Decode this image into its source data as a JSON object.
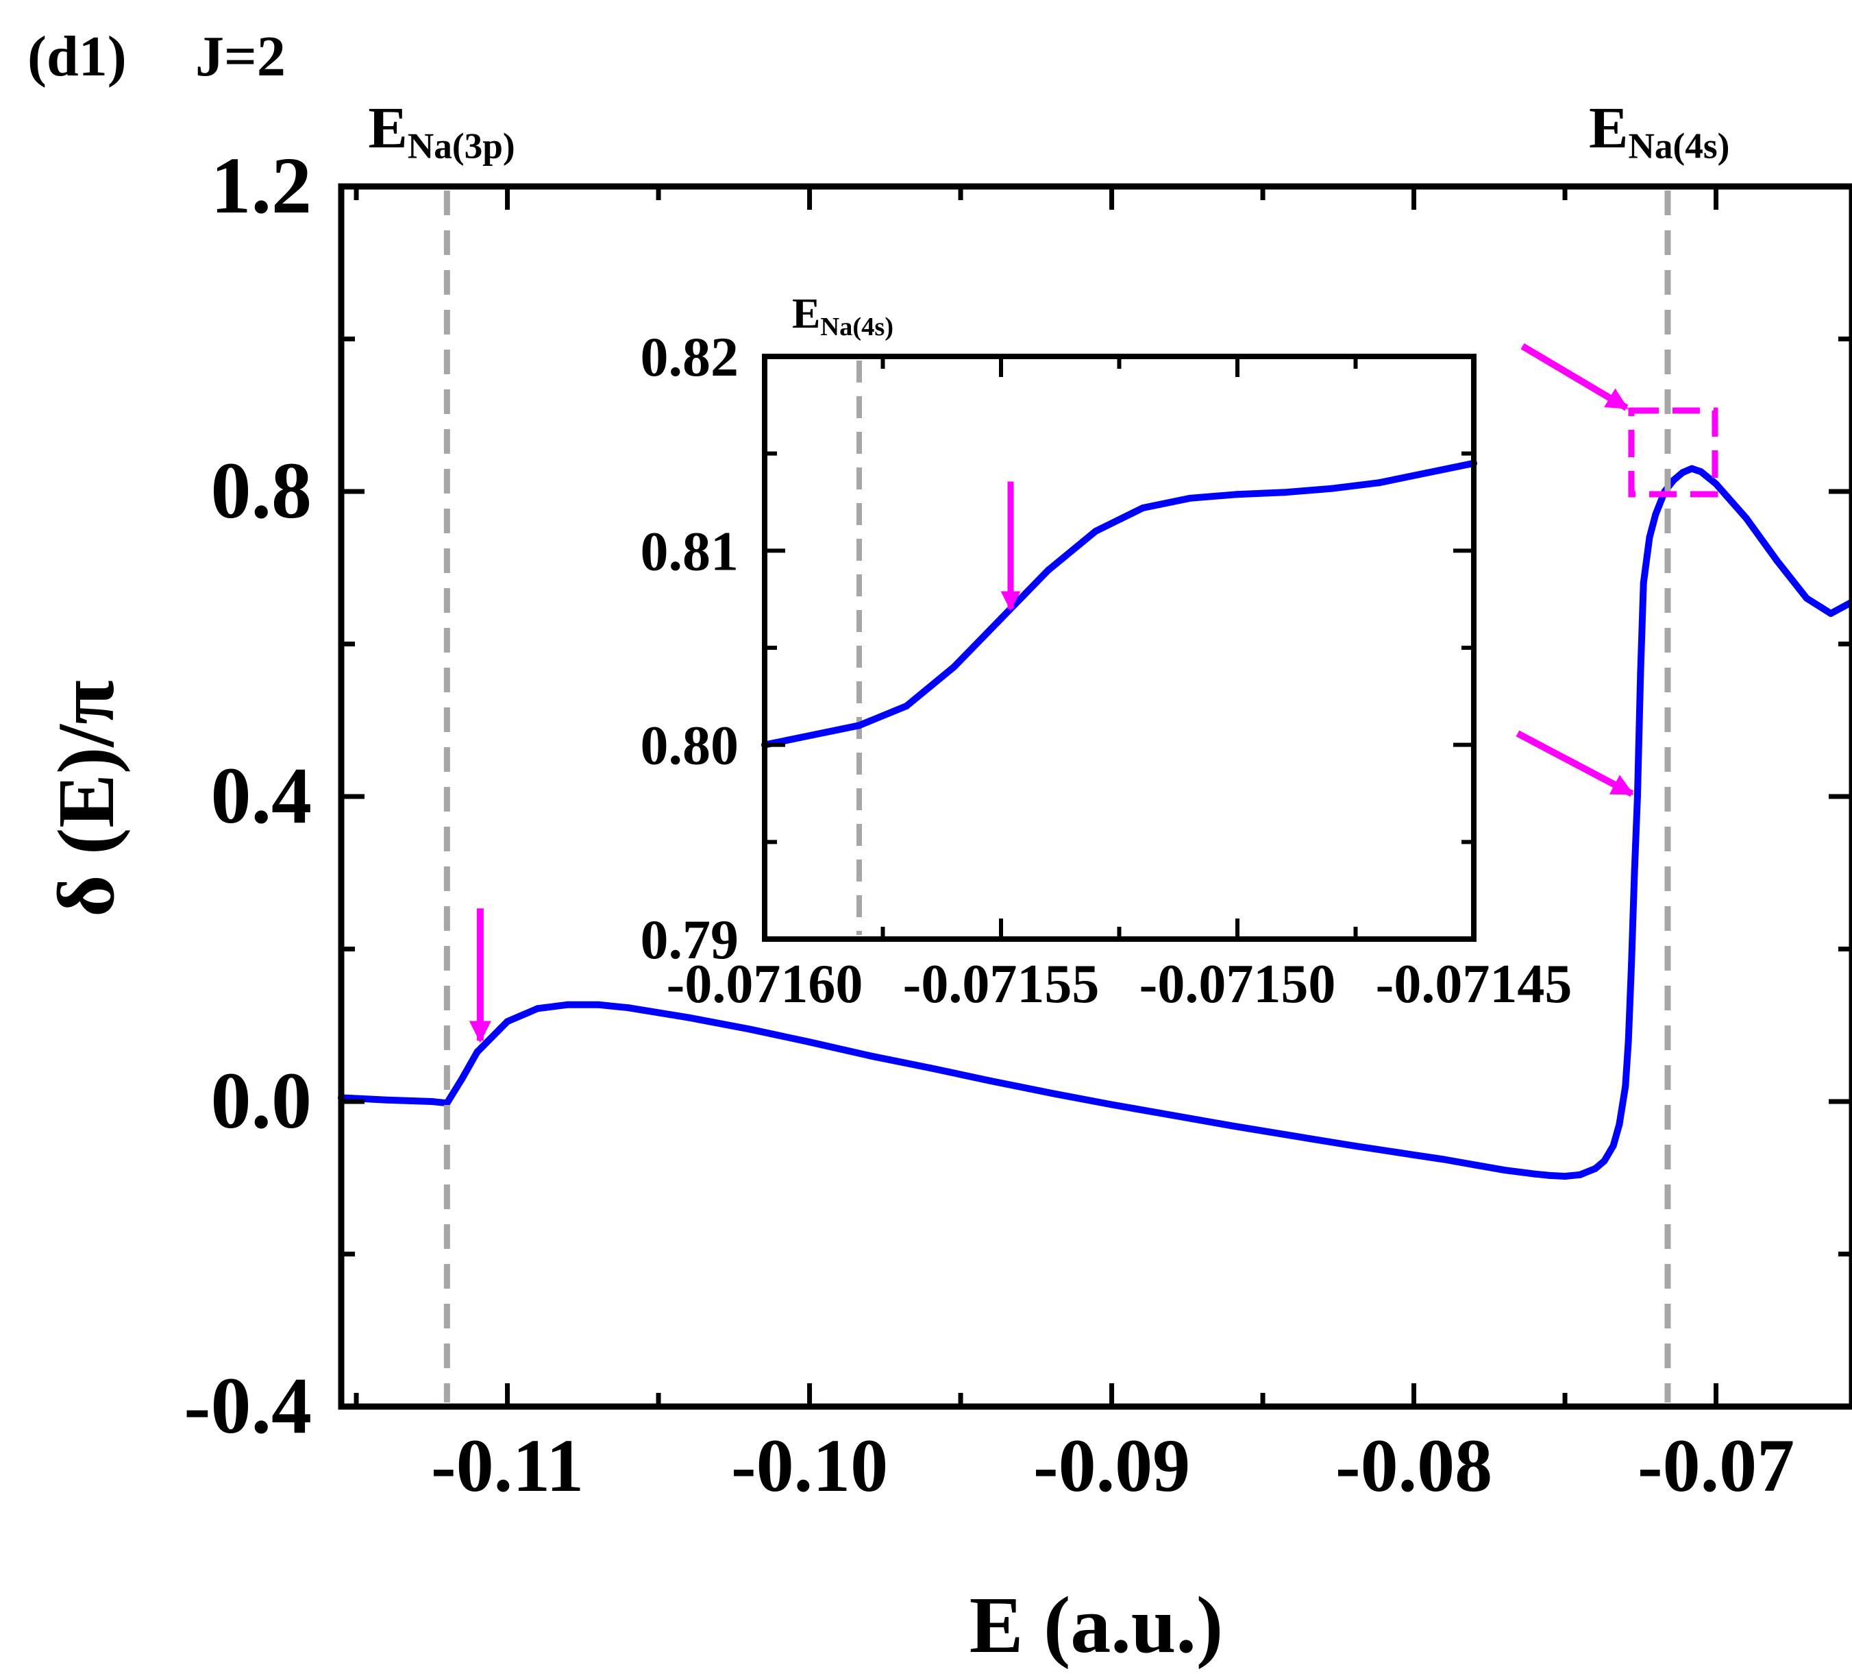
{
  "panel_label": "(d1)",
  "panel_subtitle": "J=2",
  "colors": {
    "curve": "#0000ff",
    "annotation": "#ff00ff",
    "threshold": "#a6a6a6",
    "axis": "#000000"
  },
  "chart_data": [
    {
      "type": "line",
      "name": "main",
      "xlabel": "E (a.u.)",
      "ylabel": "δ (E)/π",
      "xlim": [
        -0.1155,
        -0.0655
      ],
      "ylim": [
        -0.4,
        1.2
      ],
      "xticks": [
        -0.11,
        -0.1,
        -0.09,
        -0.08,
        -0.07
      ],
      "xtick_labels": [
        "-0.11",
        "-0.10",
        "-0.09",
        "-0.08",
        "-0.07"
      ],
      "yticks": [
        -0.4,
        0.0,
        0.4,
        0.8,
        1.2
      ],
      "ytick_labels": [
        "-0.4",
        "0.0",
        "0.4",
        "0.8",
        "1.2"
      ],
      "thresholds": [
        {
          "x": -0.112,
          "label": "E",
          "sub": "Na(3p)"
        },
        {
          "x": -0.0716,
          "label": "E",
          "sub": "Na(4s)"
        }
      ],
      "series": [
        {
          "name": "δ(E)/π",
          "x": [
            -0.1155,
            -0.114,
            -0.1125,
            -0.112,
            -0.1115,
            -0.111,
            -0.11,
            -0.109,
            -0.108,
            -0.107,
            -0.106,
            -0.104,
            -0.102,
            -0.1,
            -0.098,
            -0.096,
            -0.094,
            -0.092,
            -0.09,
            -0.088,
            -0.086,
            -0.084,
            -0.082,
            -0.08,
            -0.079,
            -0.078,
            -0.077,
            -0.076,
            -0.0755,
            -0.075,
            -0.0745,
            -0.074,
            -0.0737,
            -0.0734,
            -0.0732,
            -0.073,
            -0.0729,
            -0.0728,
            -0.0727,
            -0.0726,
            -0.0725,
            -0.0724,
            -0.0722,
            -0.072,
            -0.0717,
            -0.0714,
            -0.0711,
            -0.0708,
            -0.0705,
            -0.07,
            -0.069,
            -0.068,
            -0.067,
            -0.0662,
            -0.0655
          ],
          "y": [
            0.005,
            0.002,
            0.0,
            -0.002,
            0.03,
            0.065,
            0.105,
            0.122,
            0.127,
            0.127,
            0.123,
            0.11,
            0.095,
            0.078,
            0.06,
            0.044,
            0.027,
            0.011,
            -0.004,
            -0.018,
            -0.032,
            -0.045,
            -0.058,
            -0.07,
            -0.076,
            -0.083,
            -0.09,
            -0.095,
            -0.097,
            -0.098,
            -0.096,
            -0.088,
            -0.078,
            -0.058,
            -0.03,
            0.02,
            0.08,
            0.18,
            0.3,
            0.4,
            0.56,
            0.68,
            0.74,
            0.77,
            0.8,
            0.815,
            0.825,
            0.83,
            0.826,
            0.81,
            0.765,
            0.71,
            0.66,
            0.64,
            0.655
          ]
        }
      ],
      "annotations": [
        {
          "type": "arrow",
          "direction": "down",
          "target": "onset near E_Na(3p)"
        },
        {
          "type": "arrow",
          "direction": "down-right",
          "target": "zoom box"
        },
        {
          "type": "arrow",
          "direction": "down-right",
          "target": "steep rise"
        },
        {
          "type": "box",
          "target": "inset region near E_Na(4s)"
        }
      ]
    },
    {
      "type": "line",
      "name": "inset",
      "xlim": [
        -0.0716,
        -0.07145
      ],
      "ylim": [
        0.79,
        0.82
      ],
      "xticks": [
        -0.0716,
        -0.07155,
        -0.0715,
        -0.07145
      ],
      "xtick_labels": [
        "-0.07160",
        "-0.07155",
        "-0.07150",
        "-0.07145"
      ],
      "yticks": [
        0.79,
        0.8,
        0.81,
        0.82
      ],
      "ytick_labels": [
        "0.79",
        "0.80",
        "0.81",
        "0.82"
      ],
      "thresholds": [
        {
          "x": -0.07158,
          "label": "E",
          "sub": "Na(4s)"
        }
      ],
      "series": [
        {
          "name": "δ(E)/π",
          "x": [
            -0.0716,
            -0.07159,
            -0.07158,
            -0.07157,
            -0.07156,
            -0.07155,
            -0.07154,
            -0.07153,
            -0.07152,
            -0.07151,
            -0.0715,
            -0.07149,
            -0.07148,
            -0.07147,
            -0.07146,
            -0.07145
          ],
          "y": [
            0.8,
            0.8005,
            0.801,
            0.802,
            0.804,
            0.8065,
            0.809,
            0.811,
            0.8122,
            0.8127,
            0.8129,
            0.813,
            0.8132,
            0.8135,
            0.814,
            0.8145
          ]
        }
      ],
      "annotations": [
        {
          "type": "arrow",
          "direction": "down",
          "target": "kink at -0.07155"
        }
      ]
    }
  ]
}
